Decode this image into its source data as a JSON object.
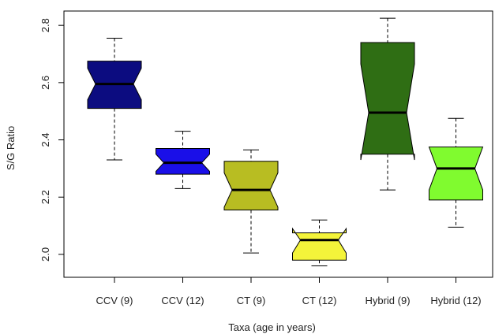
{
  "chart_data": {
    "type": "boxplot",
    "notched": true,
    "xlabel": "Taxa (age in years)",
    "ylabel": "S/G Ratio",
    "ylim": [
      1.92,
      2.85
    ],
    "yticks": [
      2.0,
      2.2,
      2.4,
      2.6,
      2.8
    ],
    "yticklabels": [
      "2.0",
      "2.2",
      "2.4",
      "2.6",
      "2.8"
    ],
    "categories": [
      "CCV (9)",
      "CCV (12)",
      "CT (9)",
      "CT (12)",
      "Hybrid (9)",
      "Hybrid (12)"
    ],
    "boxes": [
      {
        "min": 2.33,
        "q1": 2.51,
        "median": 2.595,
        "q3": 2.675,
        "max": 2.755,
        "notch_low": 2.54,
        "notch_high": 2.65,
        "color": "#0c0c80"
      },
      {
        "min": 2.23,
        "q1": 2.28,
        "median": 2.32,
        "q3": 2.37,
        "max": 2.43,
        "notch_low": 2.29,
        "notch_high": 2.35,
        "color": "#1a0fe8"
      },
      {
        "min": 2.005,
        "q1": 2.155,
        "median": 2.225,
        "q3": 2.325,
        "max": 2.365,
        "notch_low": 2.165,
        "notch_high": 2.285,
        "color": "#b8bd22"
      },
      {
        "min": 1.96,
        "q1": 1.98,
        "median": 2.05,
        "q3": 2.075,
        "max": 2.12,
        "notch_low": 2.005,
        "notch_high": 2.09,
        "color": "#f4f43a"
      },
      {
        "min": 2.225,
        "q1": 2.35,
        "median": 2.495,
        "q3": 2.74,
        "max": 2.825,
        "notch_low": 2.33,
        "notch_high": 2.665,
        "color": "#2f6e14"
      },
      {
        "min": 2.095,
        "q1": 2.19,
        "median": 2.3,
        "q3": 2.375,
        "max": 2.475,
        "notch_low": 2.225,
        "notch_high": 2.375,
        "color": "#80fb2f"
      }
    ]
  }
}
